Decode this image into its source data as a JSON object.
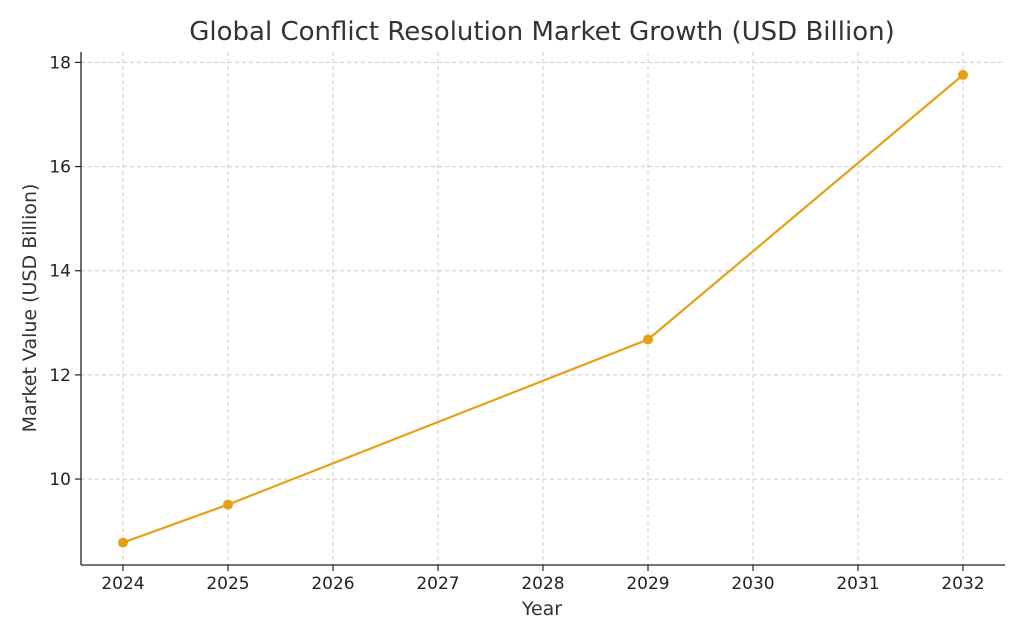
{
  "chart_data": {
    "type": "line",
    "title": "Global Conflict Resolution Market Growth (USD Billion)",
    "xlabel": "Year",
    "ylabel": "Market Value (USD Billion)",
    "x_ticks": [
      2024,
      2025,
      2026,
      2027,
      2028,
      2029,
      2030,
      2031,
      2032
    ],
    "y_ticks": [
      10,
      12,
      14,
      16,
      18
    ],
    "xlim": [
      2023.6,
      2032.4
    ],
    "ylim": [
      8.35,
      18.2
    ],
    "grid": true,
    "series": [
      {
        "color": "#E6A014",
        "points": [
          {
            "x": 2024,
            "y": 8.78
          },
          {
            "x": 2025,
            "y": 9.51
          },
          {
            "x": 2029,
            "y": 12.68
          },
          {
            "x": 2032,
            "y": 17.76
          }
        ]
      }
    ]
  }
}
